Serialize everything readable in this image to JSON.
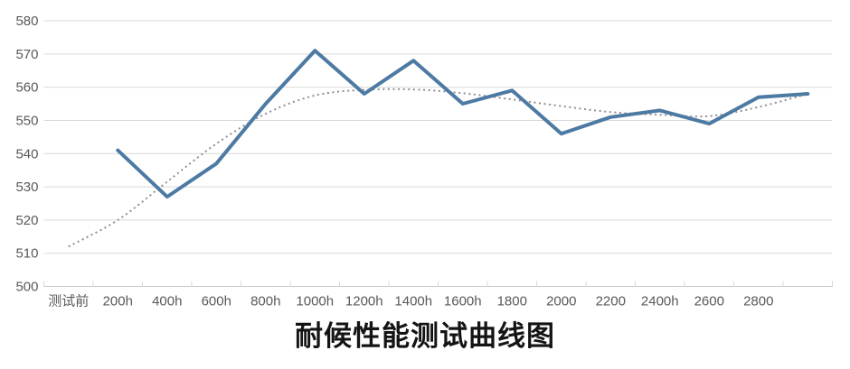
{
  "colors": {
    "background": "#ffffff",
    "series_main": "#4d7aa3",
    "series_trend": "#8f8f8f",
    "gridline": "#d9d9d9",
    "axis_line": "#c9c9c9",
    "tick_label": "#595959",
    "title_text": "#141414"
  },
  "chart_data": {
    "type": "line",
    "title": "耐候性能测试曲线图",
    "xlabel": "",
    "ylabel": "",
    "ylim": [
      500,
      580
    ],
    "yticks": [
      500,
      510,
      520,
      530,
      540,
      550,
      560,
      570,
      580
    ],
    "grid": true,
    "legend": false,
    "categories": [
      "测试前",
      "200h",
      "400h",
      "600h",
      "800h",
      "1000h",
      "1200h",
      "1400h",
      "1600h",
      "1800",
      "2000",
      "2200",
      "2400h",
      "2600",
      "2800",
      ""
    ],
    "series": [
      {
        "id": "measured-line",
        "style": "solid",
        "start_index": 1,
        "values": [
          541,
          527,
          537,
          555,
          571,
          558,
          568,
          555,
          559,
          546,
          551,
          553,
          549,
          557,
          558
        ]
      },
      {
        "id": "trend-dotted",
        "style": "dotted",
        "start_index": 0,
        "values": [
          512,
          520,
          531.5,
          543,
          552,
          557.5,
          559.2,
          559.3,
          558.2,
          556.3,
          554.3,
          552.5,
          551.7,
          551.3,
          554,
          558
        ]
      }
    ]
  }
}
